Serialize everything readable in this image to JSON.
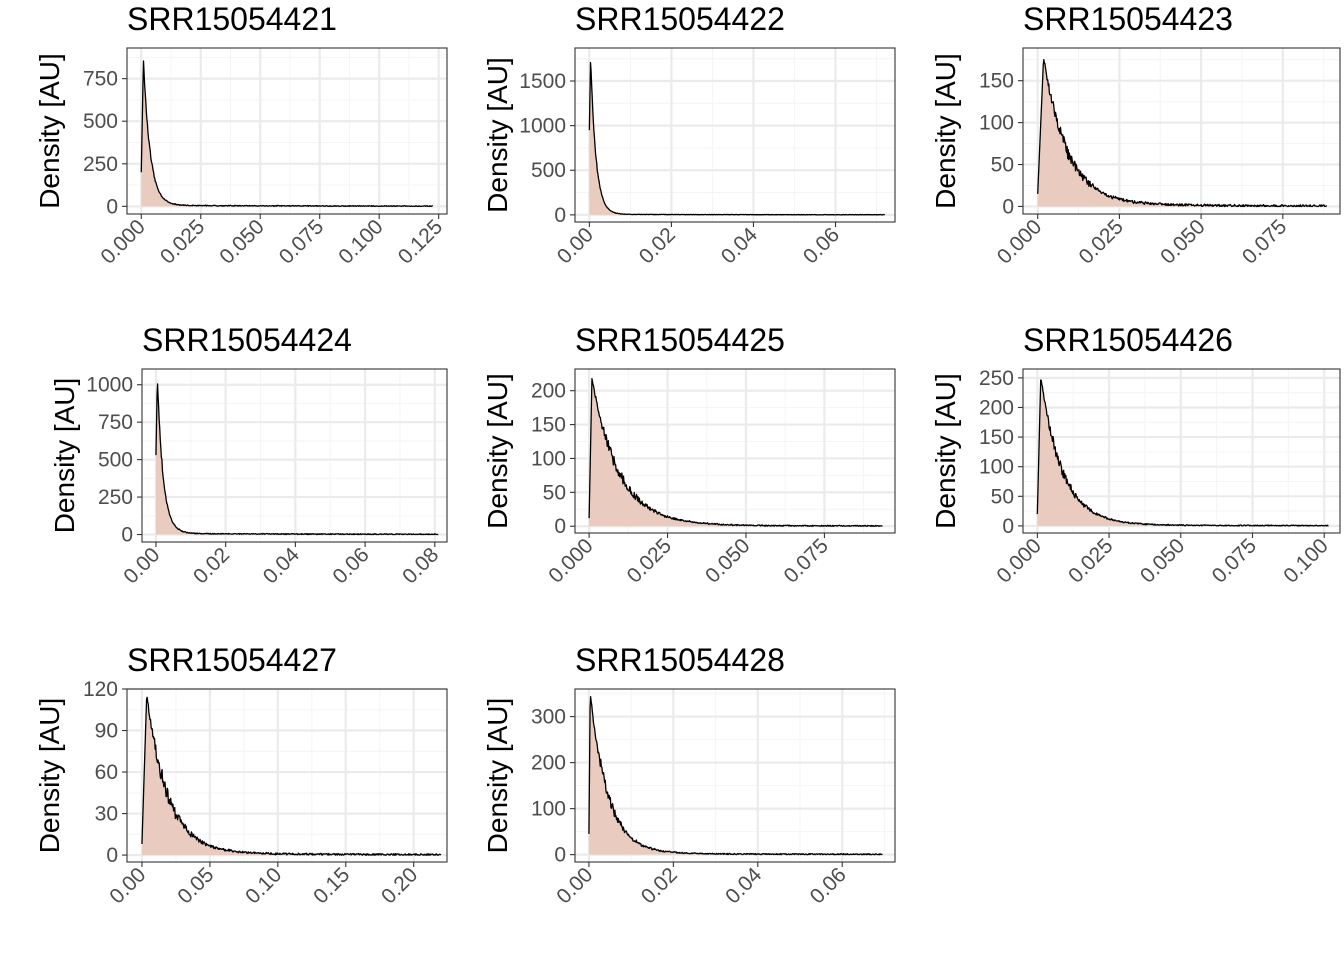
{
  "colors": {
    "fill": "#e9cbbf",
    "line": "#000000",
    "grid_major": "#ebebeb",
    "grid_minor": "#f5f5f5",
    "panel_border": "#333333",
    "tick_text": "#4d4d4d"
  },
  "chart_data": [
    {
      "type": "area",
      "title": "SRR15054421",
      "ylabel": "Density [AU]",
      "xlim": [
        -0.006,
        0.1285
      ],
      "ylim": [
        -45,
        930
      ],
      "xticks": [
        0,
        0.025,
        0.05,
        0.075,
        0.1,
        0.125
      ],
      "xtick_labels": [
        "0.000",
        "0.025",
        "0.050",
        "0.075",
        "0.100",
        "0.125"
      ],
      "yticks": [
        0,
        250,
        500,
        750
      ],
      "ytick_labels": [
        "0",
        "250",
        "500",
        "750"
      ],
      "x_max": 0.1225,
      "peak_x": 0.0009,
      "peak_y": 865,
      "start_y": 200,
      "decay": 0.0028,
      "tail": 6,
      "noise": 0.04
    },
    {
      "type": "area",
      "title": "SRR15054422",
      "ylabel": "Density [AU]",
      "xlim": [
        -0.0035,
        0.0745
      ],
      "ylim": [
        -80,
        1870
      ],
      "xticks": [
        0,
        0.02,
        0.04,
        0.06
      ],
      "xtick_labels": [
        "0.00",
        "0.02",
        "0.04",
        "0.06"
      ],
      "yticks": [
        0,
        500,
        1000,
        1500
      ],
      "ytick_labels": [
        "0",
        "500",
        "1000",
        "1500"
      ],
      "x_max": 0.072,
      "peak_x": 0.0003,
      "peak_y": 1770,
      "start_y": 950,
      "decay": 0.0013,
      "tail": 6,
      "noise": 0.04
    },
    {
      "type": "area",
      "title": "SRR15054423",
      "ylabel": "Density [AU]",
      "xlim": [
        -0.0045,
        0.0925
      ],
      "ylim": [
        -9,
        189
      ],
      "xticks": [
        0,
        0.025,
        0.05,
        0.075
      ],
      "xtick_labels": [
        "0.000",
        "0.025",
        "0.050",
        "0.075"
      ],
      "yticks": [
        0,
        50,
        100,
        150
      ],
      "ytick_labels": [
        "0",
        "50",
        "100",
        "150"
      ],
      "x_max": 0.0885,
      "peak_x": 0.0018,
      "peak_y": 178,
      "start_y": 15,
      "decay": 0.0072,
      "tail": 3,
      "noise": 0.12
    },
    {
      "type": "area",
      "title": "SRR15054424",
      "ylabel": "Density [AU]",
      "xlim": [
        -0.004,
        0.0835
      ],
      "ylim": [
        -50,
        1105
      ],
      "xticks": [
        0,
        0.02,
        0.04,
        0.06,
        0.08
      ],
      "xtick_labels": [
        "0.00",
        "0.02",
        "0.04",
        "0.06",
        "0.08"
      ],
      "yticks": [
        0,
        250,
        500,
        750,
        1000
      ],
      "ytick_labels": [
        "0",
        "250",
        "500",
        "750",
        "1000"
      ],
      "x_max": 0.081,
      "peak_x": 0.0004,
      "peak_y": 1045,
      "start_y": 530,
      "decay": 0.0017,
      "tail": 7,
      "noise": 0.05
    },
    {
      "type": "area",
      "title": "SRR15054425",
      "ylabel": "Density [AU]",
      "xlim": [
        -0.0045,
        0.0975
      ],
      "ylim": [
        -10,
        232
      ],
      "xticks": [
        0,
        0.025,
        0.05,
        0.075
      ],
      "xtick_labels": [
        "0.000",
        "0.025",
        "0.050",
        "0.075"
      ],
      "yticks": [
        0,
        50,
        100,
        150,
        200
      ],
      "ytick_labels": [
        "0",
        "50",
        "100",
        "150",
        "200"
      ],
      "x_max": 0.0935,
      "peak_x": 0.0009,
      "peak_y": 218,
      "start_y": 12,
      "decay": 0.0085,
      "tail": 2,
      "noise": 0.1
    },
    {
      "type": "area",
      "title": "SRR15054426",
      "ylabel": "Density [AU]",
      "xlim": [
        -0.005,
        0.1055
      ],
      "ylim": [
        -12,
        265
      ],
      "xticks": [
        0,
        0.025,
        0.05,
        0.075,
        0.1
      ],
      "xtick_labels": [
        "0.000",
        "0.025",
        "0.050",
        "0.075",
        "0.100"
      ],
      "yticks": [
        0,
        50,
        100,
        150,
        200,
        250
      ],
      "ytick_labels": [
        "0",
        "50",
        "100",
        "150",
        "200",
        "250"
      ],
      "x_max": 0.1015,
      "peak_x": 0.0012,
      "peak_y": 252,
      "start_y": 20,
      "decay": 0.0075,
      "tail": 2,
      "noise": 0.1
    },
    {
      "type": "area",
      "title": "SRR15054427",
      "ylabel": "Density [AU]",
      "xlim": [
        -0.011,
        0.2245
      ],
      "ylim": [
        -5,
        120
      ],
      "xticks": [
        0,
        0.05,
        0.1,
        0.15,
        0.2
      ],
      "xtick_labels": [
        "0.00",
        "0.05",
        "0.10",
        "0.15",
        "0.20"
      ],
      "yticks": [
        0,
        30,
        60,
        90,
        120
      ],
      "ytick_labels": [
        "0",
        "30",
        "60",
        "90",
        "120"
      ],
      "x_max": 0.22,
      "peak_x": 0.0035,
      "peak_y": 116,
      "start_y": 8,
      "decay": 0.0155,
      "tail": 1.5,
      "noise": 0.14
    },
    {
      "type": "area",
      "title": "SRR15054428",
      "ylabel": "Density [AU]",
      "xlim": [
        -0.0033,
        0.0725
      ],
      "ylim": [
        -16,
        360
      ],
      "xticks": [
        0,
        0.02,
        0.04,
        0.06
      ],
      "xtick_labels": [
        "0.00",
        "0.02",
        "0.04",
        "0.06"
      ],
      "yticks": [
        0,
        100,
        200,
        300
      ],
      "ytick_labels": [
        "0",
        "100",
        "200",
        "300"
      ],
      "x_max": 0.0695,
      "peak_x": 0.0003,
      "peak_y": 352,
      "start_y": 45,
      "decay": 0.0042,
      "tail": 3,
      "noise": 0.1
    }
  ]
}
